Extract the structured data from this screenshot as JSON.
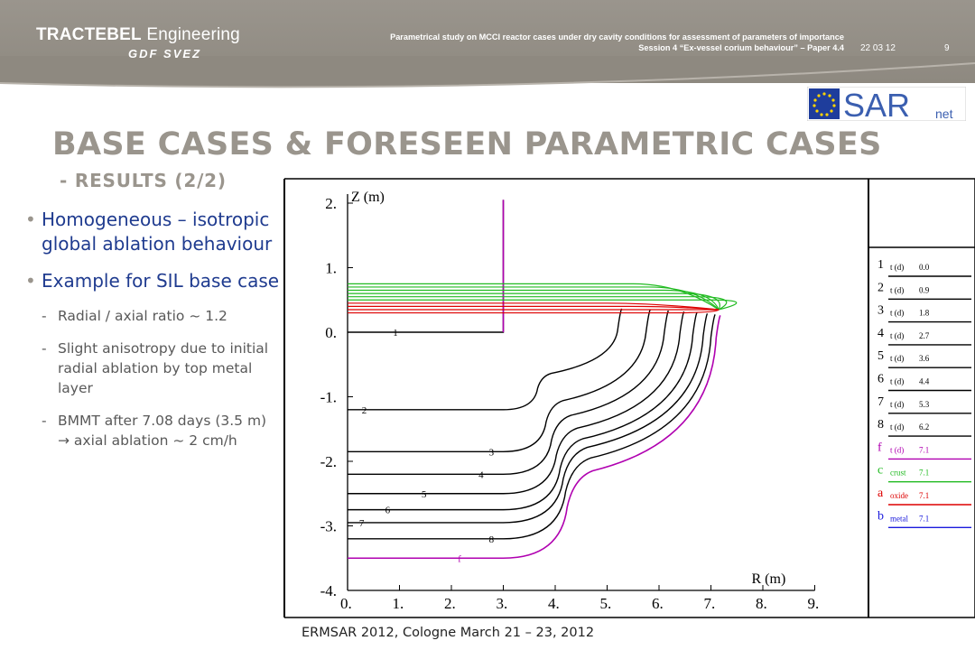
{
  "header": {
    "brand_line1_bold": "TRACTEBEL",
    "brand_line1_light": " Engineering",
    "brand_line2": "GDF SVEZ",
    "title_line1": "Parametrical study on MCCI reactor cases under dry cavity conditions for assessment of parameters of importance",
    "title_line2": "Session 4 “Ex-vessel corium behaviour” – Paper 4.4",
    "date": "22 03 12",
    "page": "9",
    "logo_text": "SAR",
    "logo_sub": "net"
  },
  "slide": {
    "title": "BASE CASES & FORESEEN PARAMETRIC CASES",
    "subtitle": "- RESULTS (2/2)",
    "bullet1": "Homogeneous – isotropic global ablation behaviour",
    "bullet2": "Example for SIL base case",
    "sub1": "Radial / axial ratio ~ 1.2",
    "sub2": "Slight anisotropy due to initial radial ablation by top metal layer",
    "sub3a": "BMMT after 7.08 days (3.5 m)",
    "sub3b": "→ axial ablation ~ 2 cm/h"
  },
  "footer": {
    "text": "ERMSAR 2012, Cologne March 21 – 23, 2012"
  },
  "chart_data": {
    "type": "line",
    "xlabel": "R (m)",
    "ylabel": "Z (m)",
    "xlim": [
      0,
      9
    ],
    "ylim": [
      -4,
      2
    ],
    "x_ticks": [
      "0.",
      "1.",
      "2.",
      "3.",
      "4.",
      "5.",
      "6.",
      "7.",
      "8.",
      "9."
    ],
    "y_ticks": [
      "2.",
      "1.",
      "0.",
      "-1.",
      "-2.",
      "-3.",
      "-4."
    ],
    "legend": [
      {
        "id": "1",
        "label": "t (d)",
        "value": "0.0",
        "color": "#000000"
      },
      {
        "id": "2",
        "label": "t (d)",
        "value": "0.9",
        "color": "#000000"
      },
      {
        "id": "3",
        "label": "t (d)",
        "value": "1.8",
        "color": "#000000"
      },
      {
        "id": "4",
        "label": "t (d)",
        "value": "2.7",
        "color": "#000000"
      },
      {
        "id": "5",
        "label": "t (d)",
        "value": "3.6",
        "color": "#000000"
      },
      {
        "id": "6",
        "label": "t (d)",
        "value": "4.4",
        "color": "#000000"
      },
      {
        "id": "7",
        "label": "t (d)",
        "value": "5.3",
        "color": "#000000"
      },
      {
        "id": "8",
        "label": "t (d)",
        "value": "6.2",
        "color": "#000000"
      },
      {
        "id": "f",
        "label": "t (d)",
        "value": "7.1",
        "color": "#b000b0"
      },
      {
        "id": "c",
        "label": "crust",
        "value": "7.1",
        "color": "#22bb22"
      },
      {
        "id": "a",
        "label": "oxide",
        "value": "7.1",
        "color": "#dd0000"
      },
      {
        "id": "b",
        "label": "metal",
        "value": "7.1",
        "color": "#1a1adc"
      }
    ],
    "cavity_profiles": [
      {
        "id": "1",
        "t_days": 0.0,
        "bottom_z": 0.0,
        "side_r": 3.0
      },
      {
        "id": "2",
        "t_days": 0.9,
        "bottom_z": -1.2,
        "side_r": 5.2
      },
      {
        "id": "3",
        "t_days": 1.8,
        "bottom_z": -1.85,
        "side_r": 5.75
      },
      {
        "id": "4",
        "t_days": 2.7,
        "bottom_z": -2.2,
        "side_r": 6.1
      },
      {
        "id": "5",
        "t_days": 3.6,
        "bottom_z": -2.5,
        "side_r": 6.4
      },
      {
        "id": "6",
        "t_days": 4.4,
        "bottom_z": -2.75,
        "side_r": 6.65
      },
      {
        "id": "7",
        "t_days": 5.3,
        "bottom_z": -2.95,
        "side_r": 6.85
      },
      {
        "id": "8",
        "t_days": 6.2,
        "bottom_z": -3.2,
        "side_r": 7.0
      },
      {
        "id": "f",
        "t_days": 7.1,
        "bottom_z": -3.5,
        "side_r": 7.1
      }
    ],
    "melt_layers": [
      {
        "kind": "crust",
        "z_values": [
          0.75,
          0.7,
          0.65,
          0.6,
          0.55,
          0.5
        ]
      },
      {
        "kind": "oxide",
        "z_values": [
          0.45,
          0.4,
          0.35,
          0.3
        ]
      }
    ]
  }
}
